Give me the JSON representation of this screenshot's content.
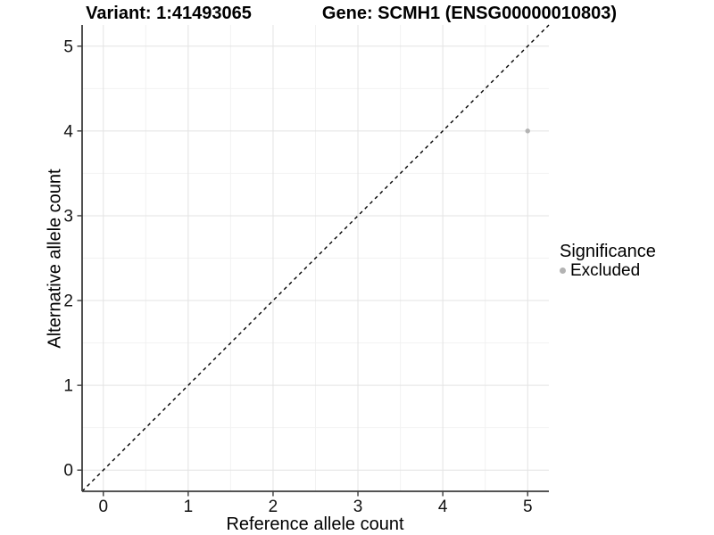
{
  "colors": {
    "background": "#ffffff",
    "grid_major": "#e3e3e3",
    "grid_minor": "#f2f2f2",
    "axis_line": "#3c3c3c",
    "tick_text": "#111111",
    "identity_line": "#000000",
    "point": "#b3b3b3"
  },
  "chart_data": {
    "type": "scatter",
    "titles": [
      "Variant: 1:41493065",
      "Gene: SCMH1 (ENSG00000010803)"
    ],
    "xlabel": "Reference allele count",
    "ylabel": "Alternative allele count",
    "xlim": [
      -0.25,
      5.25
    ],
    "ylim": [
      -0.25,
      5.25
    ],
    "x_ticks": [
      0,
      1,
      2,
      3,
      4,
      5
    ],
    "y_ticks": [
      0,
      1,
      2,
      3,
      4,
      5
    ],
    "grid": {
      "major": true,
      "minor": true
    },
    "identity_line": {
      "style": "dashed",
      "slope": 1,
      "intercept": 0
    },
    "series": [
      {
        "name": "Excluded",
        "color": "#b3b3b3",
        "marker": "dot",
        "points": [
          {
            "x": 5,
            "y": 4
          }
        ]
      }
    ],
    "legend": {
      "title": "Significance",
      "position": "right",
      "entries": [
        {
          "label": "Excluded",
          "color": "#b3b3b3",
          "icon": "dot-icon"
        }
      ]
    }
  }
}
